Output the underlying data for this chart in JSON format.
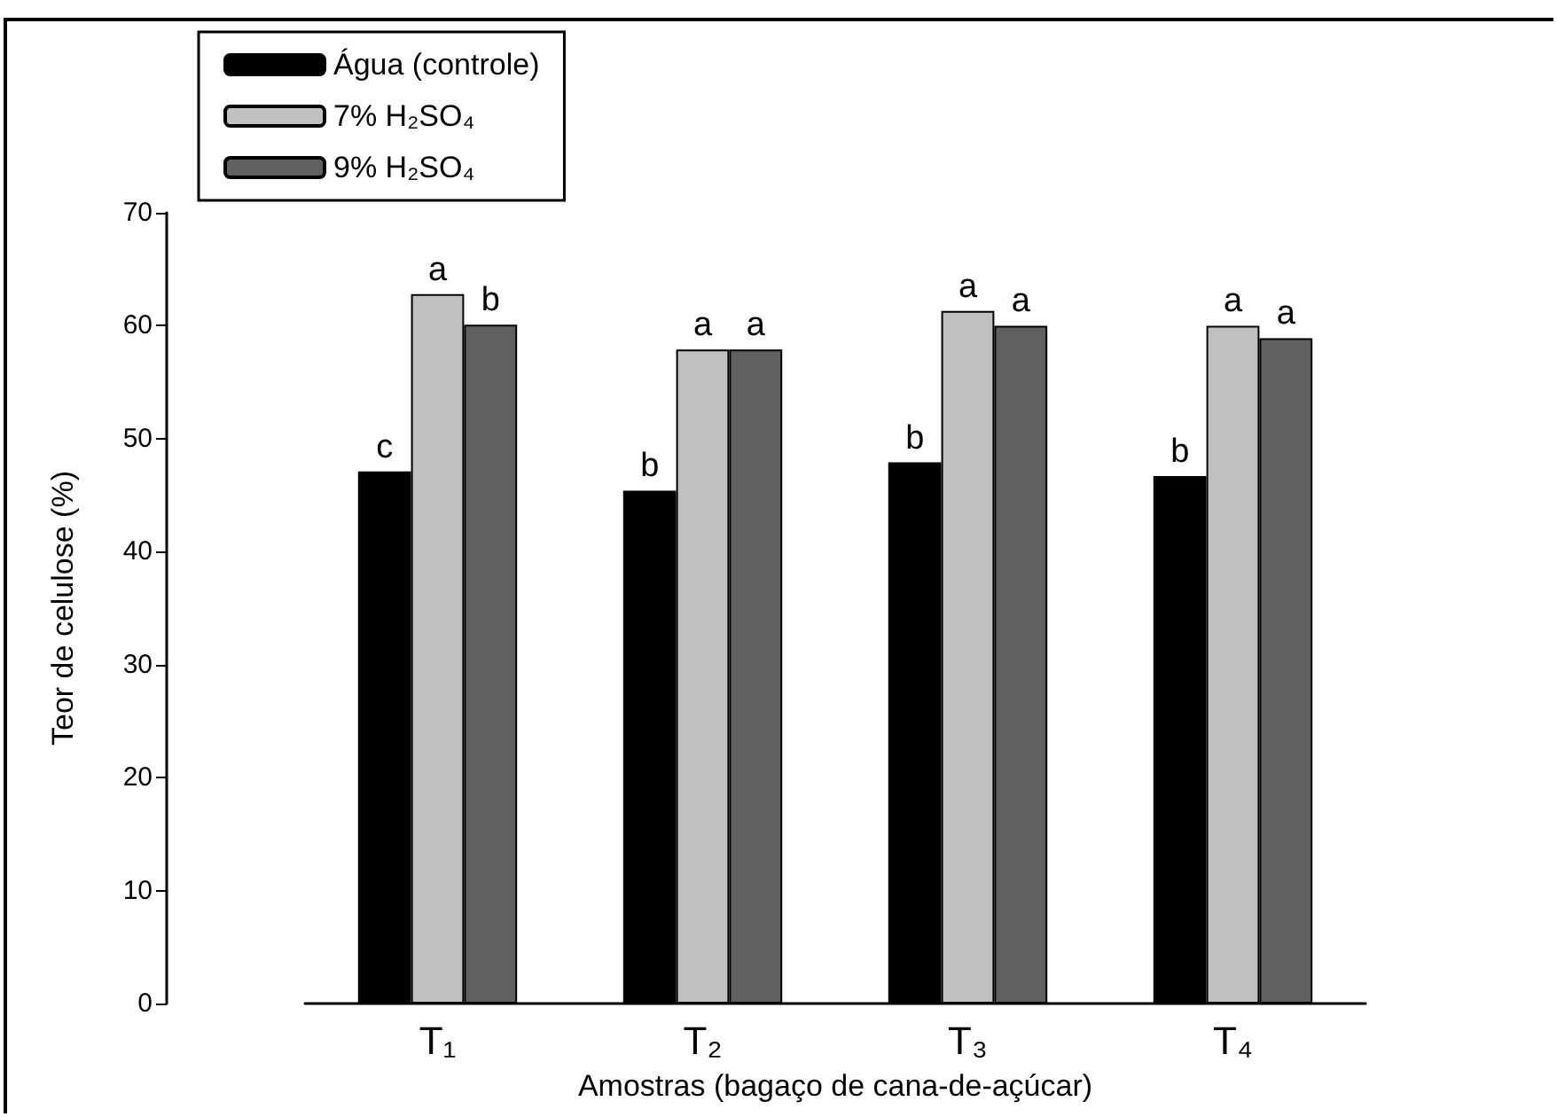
{
  "chart_data": {
    "type": "bar",
    "xlabel": "Amostras (bagaço de cana-de-açúcar)",
    "ylabel": "Teor de celulose (%)",
    "categories": [
      "T₁",
      "T₂",
      "T₃",
      "T₄"
    ],
    "series": [
      {
        "name": "Água (controle)",
        "color": "#000000",
        "values": [
          47.1,
          45.4,
          47.9,
          46.7
        ],
        "value_labels": [
          "c",
          "b",
          "b",
          "b"
        ]
      },
      {
        "name": "7% H₂SO₄",
        "color": "#c0c0c0",
        "values": [
          62.8,
          57.9,
          61.3,
          60.0
        ],
        "value_labels": [
          "a",
          "a",
          "a",
          "a"
        ]
      },
      {
        "name": "9% H₂SO₄",
        "color": "#606060",
        "values": [
          60.1,
          57.9,
          60.0,
          58.9
        ],
        "value_labels": [
          "b",
          "a",
          "a",
          "a"
        ]
      }
    ],
    "ylim": [
      0,
      70
    ],
    "yticks": [
      0,
      10,
      20,
      30,
      40,
      50,
      60,
      70
    ],
    "grid": false,
    "legend": "top left"
  }
}
